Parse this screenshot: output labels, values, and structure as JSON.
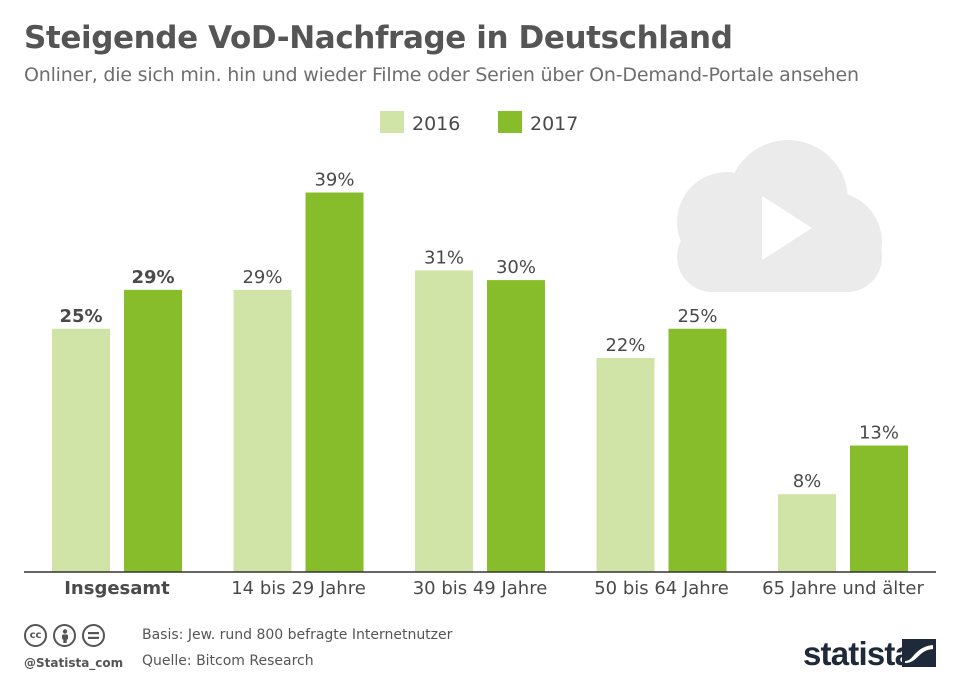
{
  "header": {
    "title": "Steigende VoD-Nachfrage in Deutschland",
    "subtitle": "Onliner, die sich min. hin und wieder Filme oder Serien über On-Demand-Portale ansehen"
  },
  "colors": {
    "series_2016": "#d1e4a8",
    "series_2017": "#87bd2a",
    "axis": "#333333",
    "label_text": "#4a4a4a",
    "cloud": "#ebebeb"
  },
  "chart_data": {
    "type": "bar",
    "title": "Steigende VoD-Nachfrage in Deutschland",
    "subtitle": "Onliner, die sich min. hin und wieder Filme oder Serien über On-Demand-Portale ansehen",
    "xlabel": "",
    "ylabel": "",
    "ylim": [
      0,
      40
    ],
    "grid": false,
    "legend_position": "top-center",
    "categories": [
      "Insgesamt",
      "14 bis 29 Jahre",
      "30 bis 49 Jahre",
      "50 bis 64 Jahre",
      "65 Jahre und älter"
    ],
    "emphasized_category": "Insgesamt",
    "series": [
      {
        "name": "2016",
        "values": [
          25,
          29,
          31,
          22,
          8
        ],
        "labels": [
          "25%",
          "29%",
          "31%",
          "22%",
          "8%"
        ]
      },
      {
        "name": "2017",
        "values": [
          29,
          39,
          30,
          25,
          13
        ],
        "labels": [
          "29%",
          "39%",
          "30%",
          "25%",
          "13%"
        ]
      }
    ]
  },
  "footer": {
    "handle": "@Statista_com",
    "basis": "Basis: Jew. rund 800 befragte Internetnutzer",
    "source": "Quelle: Bitcom Research",
    "brand": "statista",
    "license_icons": [
      "cc-icon",
      "by-icon",
      "nd-icon"
    ]
  }
}
